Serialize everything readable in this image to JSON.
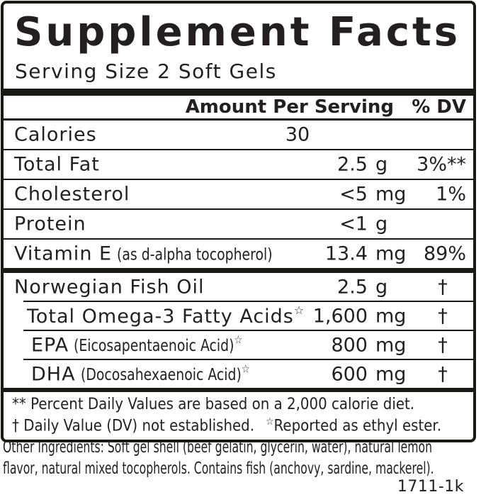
{
  "label": {
    "title": "Supplement Facts",
    "serving_size": "Serving Size 2 Soft Gels",
    "header": {
      "amount": "Amount Per Serving",
      "dv": "% DV"
    },
    "table": {
      "rows": [
        {
          "name": "Calories",
          "paren": "",
          "star": "",
          "amount": "30",
          "unit": "",
          "dv": ""
        },
        {
          "name": "Total Fat",
          "paren": "",
          "star": "",
          "amount": "2.5",
          "unit": "g",
          "dv": "3%**"
        },
        {
          "name": "Cholesterol",
          "paren": "",
          "star": "",
          "amount": "<5",
          "unit": "mg",
          "dv": "1%"
        },
        {
          "name": "Protein",
          "paren": "",
          "star": "",
          "amount": "<1",
          "unit": "g",
          "dv": ""
        },
        {
          "name": "Vitamin E",
          "paren": "(as d-alpha tocopherol)",
          "star": "",
          "amount": "13.4",
          "unit": "mg",
          "dv": "89%"
        },
        {
          "name": "Norwegian Fish Oil",
          "paren": "",
          "star": "",
          "amount": "2.5",
          "unit": "g",
          "dv": "†"
        },
        {
          "name": "Total Omega-3 Fatty Acids",
          "paren": "",
          "star": "☆",
          "amount": "1,600",
          "unit": "mg",
          "dv": "†"
        },
        {
          "name": "EPA",
          "paren": "(Eicosapentaenoic Acid)",
          "star": "☆",
          "amount": "800",
          "unit": "mg",
          "dv": "†"
        },
        {
          "name": "DHA",
          "paren": "(Docosahexaenoic Acid)",
          "star": "☆",
          "amount": "600",
          "unit": "mg",
          "dv": "†"
        }
      ]
    },
    "footnotes": {
      "line1": "** Percent Daily Values are based on a 2,000 calorie diet.",
      "line2_part1": "† Daily Value (DV) not established.",
      "line2_star": "☆",
      "line2_part2": "Reported as ethyl ester."
    },
    "other_ingredients": {
      "line1": "Other Ingredients: Soft gel shell (beef gelatin, glycerin, water), natural lemon",
      "line2": "flavor, natural mixed tocopherols. Contains fish (anchovy, sardine, mackerel)."
    },
    "code": "1711-1k",
    "colors": {
      "text": "#231f20",
      "rule": "#1b1916",
      "background": "#ffffff"
    }
  }
}
